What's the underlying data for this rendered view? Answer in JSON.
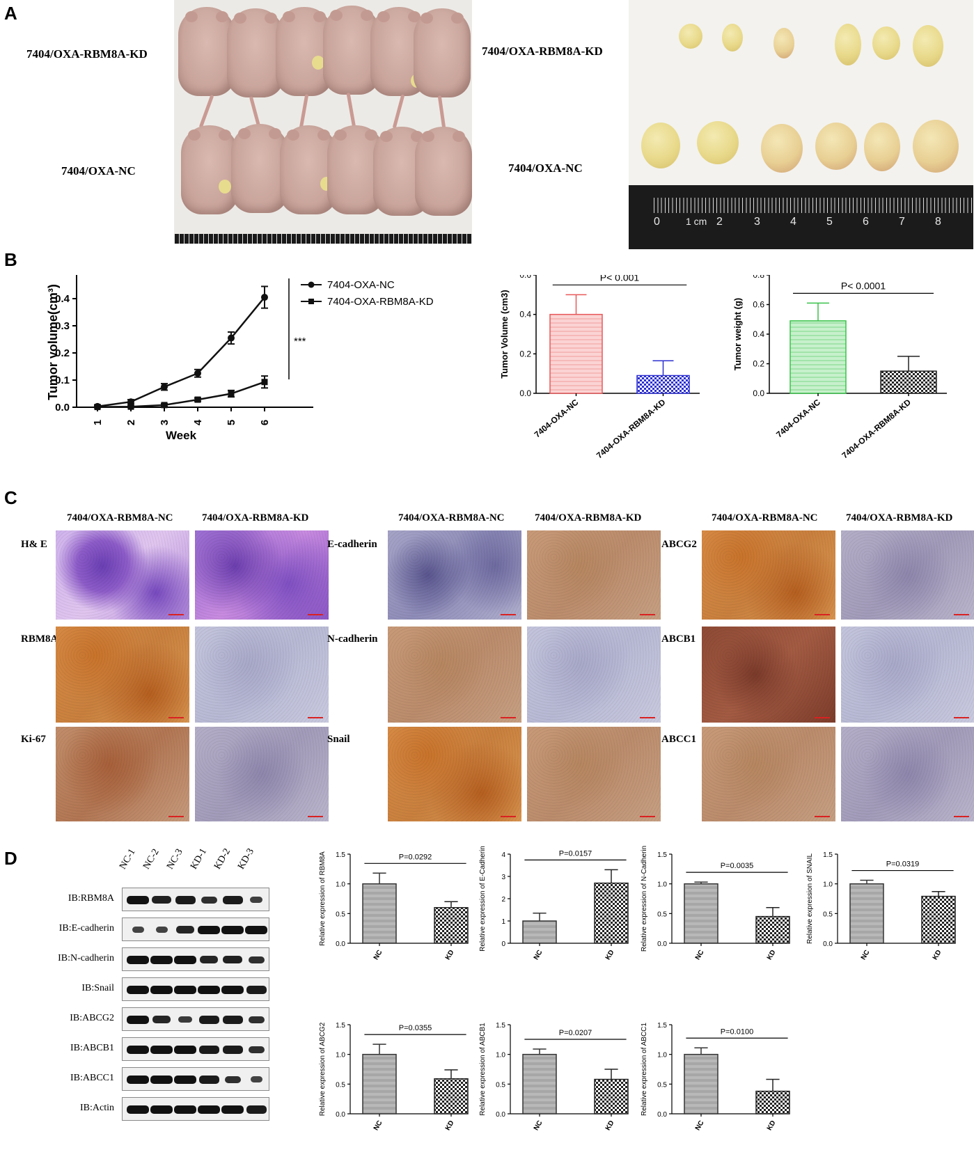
{
  "panels": {
    "A": "A",
    "B": "B",
    "C": "C",
    "D": "D"
  },
  "panelA": {
    "left_top_label": "7404/OXA-RBM8A-KD",
    "left_bottom_label": "7404/OXA-NC",
    "right_top_label": "7404/OXA-RBM8A-KD",
    "right_bottom_label": "7404/OXA-NC",
    "ruler_labels": [
      "0",
      "1 cm",
      "2",
      "3",
      "4",
      "5",
      "6",
      "7",
      "8"
    ]
  },
  "colors": {
    "nc_red": "#e8585a",
    "kd_blue": "#2b2fd0",
    "nc_green": "#39c24a",
    "kd_black": "#222222"
  },
  "chart_data": [
    {
      "type": "line",
      "ylabel": "Tumor volume(cm³)",
      "xlabel": "Week",
      "x": [
        1,
        2,
        3,
        4,
        5,
        6
      ],
      "xticks": [
        "1",
        "2",
        "3",
        "4",
        "5",
        "6"
      ],
      "yticks": [
        "0.0",
        "0.1",
        "0.2",
        "0.3",
        "0.4",
        "0.5"
      ],
      "ylim": [
        0,
        0.5
      ],
      "series": [
        {
          "name": "7404-OXA-NC",
          "values": [
            0.003,
            0.02,
            0.075,
            0.125,
            0.255,
            0.405
          ],
          "errors": [
            0.005,
            0.008,
            0.012,
            0.014,
            0.022,
            0.04
          ],
          "marker": "circle"
        },
        {
          "name": "7404-OXA-RBM8A-KD",
          "values": [
            0.001,
            0.002,
            0.008,
            0.028,
            0.05,
            0.093
          ],
          "errors": [
            0.002,
            0.003,
            0.005,
            0.006,
            0.012,
            0.022
          ],
          "marker": "square"
        }
      ],
      "annotation": "***",
      "legend": "top-right"
    },
    {
      "type": "bar",
      "ylabel": "Tumor Volume (cm3)",
      "categories": [
        "7404-OXA-NC",
        "7404-OXA-RBM8A-KD"
      ],
      "values": [
        0.4,
        0.09
      ],
      "errors": [
        0.1,
        0.075
      ],
      "yticks": [
        "0.0",
        "0.2",
        "0.4",
        "0.6"
      ],
      "ylim": [
        0,
        0.6
      ],
      "annotation": "P< 0.001"
    },
    {
      "type": "bar",
      "ylabel": "Tumor weight (g)",
      "categories": [
        "7404-OXA-NC",
        "7404-OXA-RBM8A-KD"
      ],
      "values": [
        0.49,
        0.15
      ],
      "errors": [
        0.12,
        0.1
      ],
      "yticks": [
        "0.0",
        "0.2",
        "0.4",
        "0.6",
        "0.8"
      ],
      "ylim": [
        0,
        0.8
      ],
      "annotation": "P< 0.0001"
    },
    {
      "type": "bar",
      "ylabel": "Relative expression of RBM8A",
      "categories": [
        "NC",
        "KD"
      ],
      "values": [
        1.0,
        0.6
      ],
      "errors": [
        0.18,
        0.1
      ],
      "yticks": [
        "0.0",
        "0.5",
        "1.0",
        "1.5"
      ],
      "ylim": [
        0,
        1.5
      ],
      "annotation": "P=0.0292"
    },
    {
      "type": "bar",
      "ylabel": "Relative expression of E-Cadherin",
      "categories": [
        "NC",
        "KD"
      ],
      "values": [
        1.0,
        2.7
      ],
      "errors": [
        0.35,
        0.6
      ],
      "yticks": [
        "0",
        "1",
        "2",
        "3",
        "4"
      ],
      "ylim": [
        0,
        4
      ],
      "annotation": "P=0.0157"
    },
    {
      "type": "bar",
      "ylabel": "Relative expression of N-Cadherin",
      "categories": [
        "NC",
        "KD"
      ],
      "values": [
        1.0,
        0.45
      ],
      "errors": [
        0.03,
        0.15
      ],
      "yticks": [
        "0.0",
        "0.5",
        "1.0",
        "1.5"
      ],
      "ylim": [
        0,
        1.5
      ],
      "annotation": "P=0.0035"
    },
    {
      "type": "bar",
      "ylabel": "Relative expression of SNAIL",
      "categories": [
        "NC",
        "KD"
      ],
      "values": [
        1.0,
        0.79
      ],
      "errors": [
        0.06,
        0.08
      ],
      "yticks": [
        "0.0",
        "0.5",
        "1.0",
        "1.5"
      ],
      "ylim": [
        0,
        1.5
      ],
      "annotation": "P=0.0319"
    },
    {
      "type": "bar",
      "ylabel": "Relative expression of ABCG2",
      "categories": [
        "NC",
        "KD"
      ],
      "values": [
        1.0,
        0.59
      ],
      "errors": [
        0.17,
        0.15
      ],
      "yticks": [
        "0.0",
        "0.5",
        "1.0",
        "1.5"
      ],
      "ylim": [
        0,
        1.5
      ],
      "annotation": "P=0.0355"
    },
    {
      "type": "bar",
      "ylabel": "Relative expression of ABCB1",
      "categories": [
        "NC",
        "KD"
      ],
      "values": [
        1.0,
        0.58
      ],
      "errors": [
        0.09,
        0.17
      ],
      "yticks": [
        "0.0",
        "0.5",
        "1.0",
        "1.5"
      ],
      "ylim": [
        0,
        1.5
      ],
      "annotation": "P=0.0207"
    },
    {
      "type": "bar",
      "ylabel": "Relative expression of ABCC1",
      "categories": [
        "NC",
        "KD"
      ],
      "values": [
        1.0,
        0.38
      ],
      "errors": [
        0.11,
        0.2
      ],
      "yticks": [
        "0.0",
        "0.5",
        "1.0",
        "1.5"
      ],
      "ylim": [
        0,
        1.5
      ],
      "annotation": "P=0.0100"
    }
  ],
  "panelC": {
    "col_headers": [
      "7404/OXA-RBM8A-NC",
      "7404/OXA-RBM8A-KD",
      "7404/OXA-RBM8A-NC",
      "7404/OXA-RBM8A-KD",
      "7404/OXA-RBM8A-NC",
      "7404/OXA-RBM8A-KD"
    ],
    "row_labels_1": [
      "H& E",
      "RBM8A",
      "Ki-67"
    ],
    "row_labels_2": [
      "E-cadherin",
      "N-cadherin",
      "Snail"
    ],
    "row_labels_3": [
      "ABCG2",
      "ABCB1",
      "ABCC1"
    ]
  },
  "panelD": {
    "lanes": [
      "NC-1",
      "NC-2",
      "NC-3",
      "KD-1",
      "KD-2",
      "KD-3"
    ],
    "blots": [
      "IB:RBM8A",
      "IB:E-cadherin",
      "IB:N-cadherin",
      "IB:Snail",
      "IB:ABCG2",
      "IB:ABCB1",
      "IB:ABCC1",
      "IB:Actin"
    ]
  }
}
